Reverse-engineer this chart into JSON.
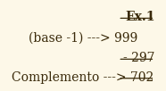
{
  "background_color": "#fdf8e8",
  "title": "Ex.1",
  "line1": "(base -1) ---> 999",
  "line2": "- 297",
  "line3": "Complemento ---> 702",
  "text_color": "#3a2a0a",
  "font_size": 10,
  "fig_width": 1.86,
  "fig_height": 1.02,
  "dpi": 100
}
